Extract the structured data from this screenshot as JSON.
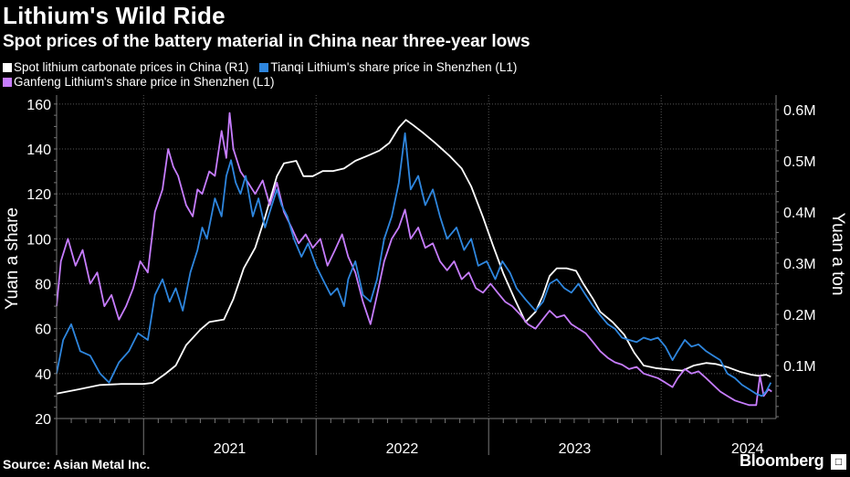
{
  "title": "Lithium's Wild Ride",
  "subtitle": "Spot prices of the battery material in China near three-year lows",
  "source": "Source: Asian Metal Inc.",
  "brand": "Bloomberg",
  "chart_data": {
    "type": "line",
    "legend_placement": "top-left",
    "grid": true,
    "xlabels": [
      "2021",
      "2022",
      "2023",
      "2024"
    ],
    "x_range": [
      "2020-07-01",
      "2024-08-31"
    ],
    "left_axis": {
      "label": "Yuan a share",
      "ticks": [
        "20",
        "40",
        "60",
        "80",
        "100",
        "120",
        "140",
        "160"
      ],
      "range": [
        20,
        164
      ]
    },
    "right_axis": {
      "label": "Yuan a ton",
      "ticks": [
        "0.1M",
        "0.2M",
        "0.3M",
        "0.4M",
        "0.5M",
        "0.6M"
      ],
      "range": [
        0,
        600000
      ]
    },
    "series": [
      {
        "name": "Spot lithium carbonate prices in China (R1)",
        "axis": "right",
        "color": "#ffffff",
        "points": [
          [
            "2020-07-01",
            45000
          ],
          [
            "2020-08-15",
            53000
          ],
          [
            "2020-10-01",
            62000
          ],
          [
            "2020-11-15",
            64000
          ],
          [
            "2021-01-01",
            64000
          ],
          [
            "2021-01-20",
            66000
          ],
          [
            "2021-02-15",
            83000
          ],
          [
            "2021-03-10",
            100000
          ],
          [
            "2021-04-01",
            140000
          ],
          [
            "2021-05-01",
            170000
          ],
          [
            "2021-05-20",
            185000
          ],
          [
            "2021-06-20",
            190000
          ],
          [
            "2021-07-10",
            230000
          ],
          [
            "2021-08-01",
            290000
          ],
          [
            "2021-08-25",
            330000
          ],
          [
            "2021-09-15",
            390000
          ],
          [
            "2021-10-10",
            470000
          ],
          [
            "2021-10-25",
            495000
          ],
          [
            "2021-11-20",
            500000
          ],
          [
            "2021-12-05",
            470000
          ],
          [
            "2021-12-25",
            470000
          ],
          [
            "2022-01-15",
            480000
          ],
          [
            "2022-02-05",
            480000
          ],
          [
            "2022-03-01",
            485000
          ],
          [
            "2022-03-25",
            500000
          ],
          [
            "2022-04-20",
            510000
          ],
          [
            "2022-05-15",
            520000
          ],
          [
            "2022-06-05",
            535000
          ],
          [
            "2022-06-25",
            565000
          ],
          [
            "2022-07-10",
            580000
          ],
          [
            "2022-07-25",
            570000
          ],
          [
            "2022-08-15",
            555000
          ],
          [
            "2022-09-10",
            535000
          ],
          [
            "2022-10-10",
            510000
          ],
          [
            "2022-11-05",
            485000
          ],
          [
            "2022-11-25",
            450000
          ],
          [
            "2022-12-20",
            390000
          ],
          [
            "2023-01-10",
            335000
          ],
          [
            "2023-02-01",
            280000
          ],
          [
            "2023-02-25",
            230000
          ],
          [
            "2023-03-20",
            185000
          ],
          [
            "2023-04-10",
            205000
          ],
          [
            "2023-04-25",
            235000
          ],
          [
            "2023-05-10",
            275000
          ],
          [
            "2023-05-25",
            290000
          ],
          [
            "2023-06-15",
            290000
          ],
          [
            "2023-07-05",
            285000
          ],
          [
            "2023-07-20",
            260000
          ],
          [
            "2023-08-10",
            230000
          ],
          [
            "2023-08-25",
            205000
          ],
          [
            "2023-09-20",
            185000
          ],
          [
            "2023-10-15",
            160000
          ],
          [
            "2023-11-05",
            125000
          ],
          [
            "2023-11-25",
            100000
          ],
          [
            "2023-12-20",
            95000
          ],
          [
            "2024-01-20",
            92000
          ],
          [
            "2024-02-15",
            90000
          ],
          [
            "2024-03-10",
            100000
          ],
          [
            "2024-04-05",
            105000
          ],
          [
            "2024-04-25",
            103000
          ],
          [
            "2024-05-20",
            97000
          ],
          [
            "2024-06-15",
            88000
          ],
          [
            "2024-07-10",
            82000
          ],
          [
            "2024-07-25",
            80000
          ],
          [
            "2024-08-10",
            82000
          ],
          [
            "2024-08-20",
            78000
          ]
        ]
      },
      {
        "name": "Tianqi Lithium's share price in Shenzhen (L1)",
        "axis": "left",
        "color": "#2e86de",
        "points": [
          [
            "2020-07-01",
            40
          ],
          [
            "2020-07-15",
            55
          ],
          [
            "2020-08-01",
            62
          ],
          [
            "2020-08-20",
            50
          ],
          [
            "2020-09-10",
            48
          ],
          [
            "2020-10-01",
            40
          ],
          [
            "2020-10-20",
            36
          ],
          [
            "2020-11-10",
            45
          ],
          [
            "2020-12-01",
            50
          ],
          [
            "2020-12-20",
            58
          ],
          [
            "2021-01-10",
            55
          ],
          [
            "2021-01-25",
            75
          ],
          [
            "2021-02-10",
            82
          ],
          [
            "2021-02-25",
            72
          ],
          [
            "2021-03-10",
            78
          ],
          [
            "2021-03-25",
            68
          ],
          [
            "2021-04-10",
            85
          ],
          [
            "2021-04-25",
            95
          ],
          [
            "2021-05-05",
            105
          ],
          [
            "2021-05-15",
            100
          ],
          [
            "2021-06-01",
            118
          ],
          [
            "2021-06-15",
            110
          ],
          [
            "2021-06-25",
            128
          ],
          [
            "2021-07-05",
            135
          ],
          [
            "2021-07-15",
            125
          ],
          [
            "2021-07-25",
            120
          ],
          [
            "2021-08-05",
            128
          ],
          [
            "2021-08-20",
            110
          ],
          [
            "2021-09-01",
            118
          ],
          [
            "2021-09-15",
            105
          ],
          [
            "2021-09-25",
            112
          ],
          [
            "2021-10-10",
            122
          ],
          [
            "2021-10-20",
            115
          ],
          [
            "2021-11-01",
            110
          ],
          [
            "2021-11-15",
            100
          ],
          [
            "2021-12-01",
            92
          ],
          [
            "2021-12-15",
            98
          ],
          [
            "2022-01-01",
            88
          ],
          [
            "2022-01-15",
            82
          ],
          [
            "2022-02-01",
            75
          ],
          [
            "2022-02-15",
            78
          ],
          [
            "2022-03-01",
            70
          ],
          [
            "2022-03-10",
            82
          ],
          [
            "2022-03-25",
            90
          ],
          [
            "2022-04-10",
            75
          ],
          [
            "2022-04-26",
            72
          ],
          [
            "2022-05-10",
            82
          ],
          [
            "2022-05-25",
            100
          ],
          [
            "2022-06-10",
            110
          ],
          [
            "2022-06-25",
            125
          ],
          [
            "2022-07-08",
            147
          ],
          [
            "2022-07-20",
            122
          ],
          [
            "2022-08-05",
            128
          ],
          [
            "2022-08-20",
            115
          ],
          [
            "2022-09-05",
            122
          ],
          [
            "2022-09-20",
            110
          ],
          [
            "2022-10-05",
            100
          ],
          [
            "2022-10-25",
            105
          ],
          [
            "2022-11-10",
            95
          ],
          [
            "2022-11-25",
            100
          ],
          [
            "2022-12-10",
            88
          ],
          [
            "2022-12-28",
            90
          ],
          [
            "2023-01-15",
            82
          ],
          [
            "2023-01-30",
            90
          ],
          [
            "2023-02-15",
            85
          ],
          [
            "2023-03-01",
            78
          ],
          [
            "2023-03-20",
            73
          ],
          [
            "2023-04-10",
            68
          ],
          [
            "2023-04-26",
            72
          ],
          [
            "2023-05-10",
            80
          ],
          [
            "2023-05-25",
            82
          ],
          [
            "2023-06-10",
            78
          ],
          [
            "2023-06-25",
            76
          ],
          [
            "2023-07-10",
            80
          ],
          [
            "2023-07-25",
            75
          ],
          [
            "2023-08-10",
            70
          ],
          [
            "2023-08-25",
            66
          ],
          [
            "2023-09-10",
            62
          ],
          [
            "2023-09-25",
            60
          ],
          [
            "2023-10-10",
            56
          ],
          [
            "2023-10-25",
            55
          ],
          [
            "2023-11-10",
            54
          ],
          [
            "2023-11-25",
            56
          ],
          [
            "2023-12-10",
            55
          ],
          [
            "2023-12-25",
            56
          ],
          [
            "2024-01-10",
            52
          ],
          [
            "2024-01-25",
            46
          ],
          [
            "2024-02-05",
            50
          ],
          [
            "2024-02-20",
            55
          ],
          [
            "2024-03-05",
            52
          ],
          [
            "2024-03-20",
            53
          ],
          [
            "2024-04-05",
            50
          ],
          [
            "2024-04-20",
            48
          ],
          [
            "2024-05-05",
            46
          ],
          [
            "2024-05-20",
            40
          ],
          [
            "2024-06-05",
            38
          ],
          [
            "2024-06-20",
            35
          ],
          [
            "2024-07-05",
            33
          ],
          [
            "2024-07-20",
            31
          ],
          [
            "2024-08-01",
            30
          ],
          [
            "2024-08-10",
            32
          ],
          [
            "2024-08-20",
            36
          ]
        ]
      },
      {
        "name": "Ganfeng Lithium's share price in Shenzhen (L1)",
        "axis": "left",
        "color": "#c77dff",
        "points": [
          [
            "2020-07-01",
            70
          ],
          [
            "2020-07-10",
            90
          ],
          [
            "2020-07-25",
            100
          ],
          [
            "2020-08-10",
            88
          ],
          [
            "2020-08-25",
            95
          ],
          [
            "2020-09-10",
            80
          ],
          [
            "2020-09-25",
            85
          ],
          [
            "2020-10-10",
            70
          ],
          [
            "2020-10-25",
            75
          ],
          [
            "2020-11-10",
            64
          ],
          [
            "2020-11-25",
            70
          ],
          [
            "2020-12-10",
            78
          ],
          [
            "2020-12-25",
            90
          ],
          [
            "2021-01-10",
            85
          ],
          [
            "2021-01-25",
            112
          ],
          [
            "2021-02-10",
            122
          ],
          [
            "2021-02-22",
            140
          ],
          [
            "2021-03-05",
            132
          ],
          [
            "2021-03-15",
            128
          ],
          [
            "2021-04-01",
            115
          ],
          [
            "2021-04-15",
            110
          ],
          [
            "2021-04-25",
            122
          ],
          [
            "2021-05-05",
            120
          ],
          [
            "2021-05-20",
            130
          ],
          [
            "2021-06-01",
            128
          ],
          [
            "2021-06-15",
            148
          ],
          [
            "2021-06-25",
            136
          ],
          [
            "2021-07-02",
            156
          ],
          [
            "2021-07-10",
            140
          ],
          [
            "2021-07-25",
            130
          ],
          [
            "2021-08-10",
            125
          ],
          [
            "2021-08-25",
            120
          ],
          [
            "2021-09-10",
            126
          ],
          [
            "2021-09-25",
            115
          ],
          [
            "2021-10-10",
            125
          ],
          [
            "2021-10-25",
            112
          ],
          [
            "2021-11-10",
            105
          ],
          [
            "2021-11-25",
            98
          ],
          [
            "2021-12-10",
            102
          ],
          [
            "2021-12-25",
            96
          ],
          [
            "2022-01-10",
            100
          ],
          [
            "2022-01-25",
            88
          ],
          [
            "2022-02-10",
            95
          ],
          [
            "2022-02-25",
            102
          ],
          [
            "2022-03-10",
            92
          ],
          [
            "2022-03-25",
            85
          ],
          [
            "2022-04-10",
            72
          ],
          [
            "2022-04-26",
            62
          ],
          [
            "2022-05-10",
            75
          ],
          [
            "2022-05-25",
            90
          ],
          [
            "2022-06-10",
            100
          ],
          [
            "2022-06-25",
            105
          ],
          [
            "2022-07-08",
            113
          ],
          [
            "2022-07-20",
            100
          ],
          [
            "2022-08-05",
            105
          ],
          [
            "2022-08-20",
            96
          ],
          [
            "2022-09-05",
            98
          ],
          [
            "2022-09-20",
            90
          ],
          [
            "2022-10-05",
            86
          ],
          [
            "2022-10-20",
            90
          ],
          [
            "2022-11-05",
            82
          ],
          [
            "2022-11-20",
            85
          ],
          [
            "2022-12-05",
            78
          ],
          [
            "2022-12-20",
            76
          ],
          [
            "2023-01-05",
            80
          ],
          [
            "2023-01-20",
            76
          ],
          [
            "2023-02-05",
            72
          ],
          [
            "2023-02-20",
            70
          ],
          [
            "2023-03-10",
            66
          ],
          [
            "2023-03-25",
            62
          ],
          [
            "2023-04-10",
            60
          ],
          [
            "2023-04-25",
            64
          ],
          [
            "2023-05-10",
            68
          ],
          [
            "2023-05-25",
            65
          ],
          [
            "2023-06-10",
            66
          ],
          [
            "2023-06-25",
            62
          ],
          [
            "2023-07-10",
            60
          ],
          [
            "2023-07-25",
            58
          ],
          [
            "2023-08-10",
            54
          ],
          [
            "2023-08-25",
            50
          ],
          [
            "2023-09-10",
            47
          ],
          [
            "2023-09-25",
            45
          ],
          [
            "2023-10-10",
            44
          ],
          [
            "2023-10-25",
            42
          ],
          [
            "2023-11-10",
            43
          ],
          [
            "2023-11-25",
            40
          ],
          [
            "2023-12-10",
            39
          ],
          [
            "2023-12-25",
            38
          ],
          [
            "2024-01-10",
            36
          ],
          [
            "2024-01-25",
            34
          ],
          [
            "2024-02-05",
            38
          ],
          [
            "2024-02-20",
            42
          ],
          [
            "2024-03-05",
            40
          ],
          [
            "2024-03-20",
            41
          ],
          [
            "2024-04-05",
            38
          ],
          [
            "2024-04-20",
            35
          ],
          [
            "2024-05-05",
            32
          ],
          [
            "2024-05-20",
            30
          ],
          [
            "2024-06-05",
            28
          ],
          [
            "2024-06-20",
            27
          ],
          [
            "2024-07-05",
            26
          ],
          [
            "2024-07-20",
            26
          ],
          [
            "2024-07-28",
            39
          ],
          [
            "2024-08-05",
            30
          ],
          [
            "2024-08-15",
            33
          ],
          [
            "2024-08-22",
            32
          ]
        ]
      }
    ]
  }
}
